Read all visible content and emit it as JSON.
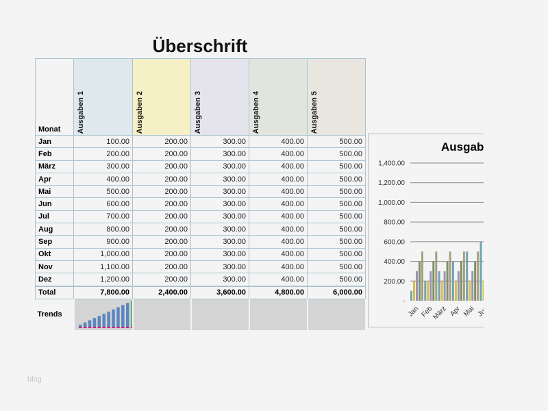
{
  "title": "Überschrift",
  "table": {
    "month_header": "Monat",
    "columns": [
      "Ausgaben 1",
      "Ausgaben 2",
      "Ausgaben 3",
      "Ausgaben 4",
      "Ausgaben 5"
    ],
    "column_colors": [
      "#dfe8ec",
      "#f5f0c6",
      "#e5e4ec",
      "#e1e5de",
      "#e9e6e0"
    ],
    "rows": [
      {
        "month": "Jan",
        "values": [
          "100.00",
          "200.00",
          "300.00",
          "400.00",
          "500.00"
        ]
      },
      {
        "month": "Feb",
        "values": [
          "200.00",
          "200.00",
          "300.00",
          "400.00",
          "500.00"
        ]
      },
      {
        "month": "März",
        "values": [
          "300.00",
          "200.00",
          "300.00",
          "400.00",
          "500.00"
        ]
      },
      {
        "month": "Apr",
        "values": [
          "400.00",
          "200.00",
          "300.00",
          "400.00",
          "500.00"
        ]
      },
      {
        "month": "Mai",
        "values": [
          "500.00",
          "200.00",
          "300.00",
          "400.00",
          "500.00"
        ]
      },
      {
        "month": "Jun",
        "values": [
          "600.00",
          "200.00",
          "300.00",
          "400.00",
          "500.00"
        ]
      },
      {
        "month": "Jul",
        "values": [
          "700.00",
          "200.00",
          "300.00",
          "400.00",
          "500.00"
        ]
      },
      {
        "month": "Aug",
        "values": [
          "800.00",
          "200.00",
          "300.00",
          "400.00",
          "500.00"
        ]
      },
      {
        "month": "Sep",
        "values": [
          "900.00",
          "200.00",
          "300.00",
          "400.00",
          "500.00"
        ]
      },
      {
        "month": "Okt",
        "values": [
          "1,000.00",
          "200.00",
          "300.00",
          "400.00",
          "500.00"
        ]
      },
      {
        "month": "Nov",
        "values": [
          "1,100.00",
          "200.00",
          "300.00",
          "400.00",
          "500.00"
        ]
      },
      {
        "month": "Dez",
        "values": [
          "1,200.00",
          "200.00",
          "300.00",
          "400.00",
          "500.00"
        ]
      }
    ],
    "total_label": "Total",
    "totals": [
      "7,800.00",
      "2,400.00",
      "3,600.00",
      "4,800.00",
      "6,000.00"
    ],
    "trends_label": "Trends"
  },
  "chart_data": {
    "type": "bar",
    "title": "Ausgab",
    "categories": [
      "Jan",
      "Feb",
      "März",
      "Apr",
      "Mai",
      "Jun"
    ],
    "series": [
      {
        "values": [
          100,
          200,
          300,
          400,
          500,
          600
        ],
        "color": "#6fa4b4"
      },
      {
        "values": [
          200,
          200,
          200,
          200,
          200,
          200
        ],
        "color": "#d8c040"
      },
      {
        "values": [
          300,
          300,
          300,
          300,
          300,
          300
        ],
        "color": "#9a94b4"
      },
      {
        "values": [
          400,
          400,
          400,
          400,
          400,
          400
        ],
        "color": "#7d906a"
      },
      {
        "values": [
          500,
          500,
          500,
          500,
          500,
          500
        ],
        "color": "#a89f80"
      }
    ],
    "yticks": [
      "-",
      "200.00",
      "400.00",
      "600.00",
      "800.00",
      "1,000.00",
      "1,200.00",
      "1,400.00"
    ],
    "ylim": [
      0,
      1400
    ],
    "grid": true
  },
  "watermark": "blog"
}
